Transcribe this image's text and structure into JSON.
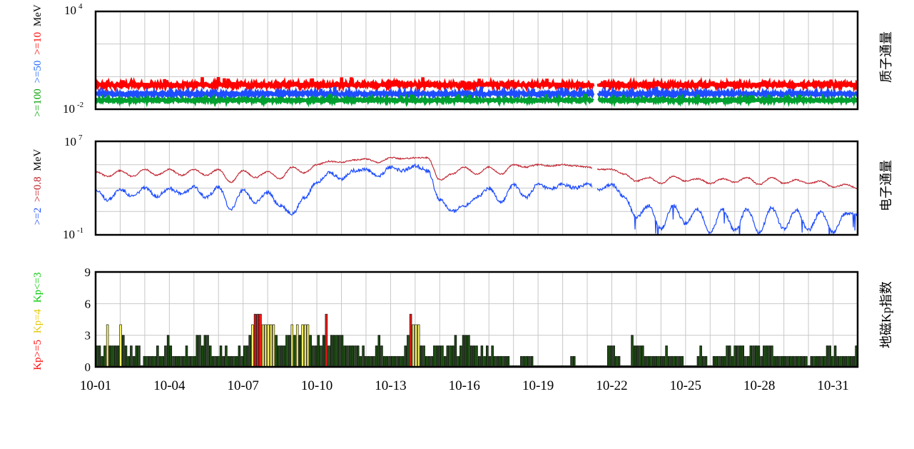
{
  "chart_data": [
    {
      "type": "line",
      "panel": "proton-flux",
      "yscale": "log",
      "ylim_exp": [
        -2,
        4
      ],
      "y_tick_labels": [
        {
          "base": "10",
          "exp": "4",
          "value_exp": 4
        },
        {
          "base": "10",
          "exp": "-2",
          "value_exp": -2
        }
      ],
      "right_label": "质子通量",
      "left_label_parts": [
        {
          "text": ">=100",
          "color": "#00a000"
        },
        {
          "text": ">=50",
          "color": "#1e64ff"
        },
        {
          "text": ">=10",
          "color": "#ff0000"
        },
        {
          "text": "MeV",
          "color": "#000000"
        }
      ],
      "series": [
        {
          "color": "#ff0000",
          "base_exp": -0.5,
          "noise": 0.12
        },
        {
          "color": "#1e4dff",
          "base_exp": -1.05,
          "noise": 0.08
        },
        {
          "color": "#00a030",
          "base_exp": -1.45,
          "noise": 0.06
        }
      ],
      "data_gap_days": [
        20.25,
        20.45
      ]
    },
    {
      "type": "line",
      "panel": "electron-flux",
      "yscale": "log",
      "ylim_exp": [
        -1,
        7
      ],
      "y_tick_labels": [
        {
          "base": "10",
          "exp": "7",
          "value_exp": 7
        },
        {
          "base": "10",
          "exp": "-1",
          "value_exp": -1
        }
      ],
      "right_label": "电子通量",
      "left_label_parts": [
        {
          "text": ">=2",
          "color": "#1e4dff"
        },
        {
          "text": ">=0.8",
          "color": "#c0141e"
        },
        {
          "text": "MeV",
          "color": "#000000"
        }
      ],
      "series": [
        {
          "color": "#c0202c",
          "day": [
            0,
            0.5,
            1,
            1.5,
            2,
            2.5,
            3,
            3.5,
            4,
            4.5,
            5,
            5.5,
            6,
            6.5,
            7,
            7.5,
            8,
            8.5,
            9,
            9.5,
            10,
            10.5,
            11,
            11.5,
            12,
            12.5,
            13,
            13.5,
            14,
            14.5,
            15,
            15.5,
            16,
            16.5,
            17,
            17.5,
            18,
            18.5,
            19,
            19.5,
            20,
            20.5,
            21,
            21.5,
            22,
            22.5,
            23,
            23.5,
            24,
            24.5,
            25,
            25.5,
            26,
            26.5,
            27,
            27.5,
            28,
            28.5,
            29,
            29.5,
            30,
            30.5,
            31
          ],
          "log10": [
            4.4,
            4.0,
            4.5,
            4.0,
            4.6,
            4.1,
            4.6,
            4.1,
            4.6,
            4.1,
            4.6,
            3.5,
            4.5,
            3.9,
            4.4,
            3.8,
            4.8,
            4.3,
            5.0,
            5.3,
            5.2,
            5.4,
            5.5,
            5.2,
            5.6,
            5.5,
            5.6,
            5.6,
            3.7,
            4.2,
            4.8,
            4.2,
            4.8,
            4.2,
            5.0,
            4.8,
            5.0,
            4.9,
            5.0,
            4.9,
            4.8,
            4.6,
            4.6,
            4.2,
            3.6,
            3.9,
            3.4,
            4.0,
            3.6,
            3.8,
            3.4,
            3.8,
            3.5,
            3.9,
            3.3,
            3.9,
            3.4,
            3.7,
            3.4,
            3.6,
            3.1,
            3.3,
            3.0
          ]
        },
        {
          "color": "#1e4dff",
          "day": [
            0,
            0.5,
            1,
            1.5,
            2,
            2.5,
            3,
            3.5,
            4,
            4.5,
            5,
            5.5,
            6,
            6.5,
            7,
            7.5,
            8,
            8.5,
            9,
            9.5,
            10,
            10.5,
            11,
            11.5,
            12,
            12.5,
            13,
            13.5,
            14,
            14.5,
            15,
            15.5,
            16,
            16.5,
            17,
            17.5,
            18,
            18.5,
            19,
            19.5,
            20,
            20.5,
            21,
            21.5,
            22,
            22.5,
            23,
            23.5,
            24,
            24.5,
            25,
            25.5,
            26,
            26.5,
            27,
            27.5,
            28,
            28.5,
            29,
            29.5,
            30,
            30.5,
            31
          ],
          "log10": [
            2.8,
            2.0,
            2.9,
            2.3,
            3.0,
            2.3,
            3.0,
            2.5,
            3.1,
            2.2,
            3.1,
            1.2,
            2.8,
            1.8,
            2.6,
            1.5,
            0.8,
            2.2,
            3.5,
            4.3,
            3.8,
            4.5,
            4.6,
            4.0,
            4.8,
            4.5,
            4.9,
            4.5,
            2.0,
            1.0,
            1.5,
            2.2,
            3.0,
            1.8,
            3.3,
            2.2,
            3.3,
            2.9,
            3.3,
            3.0,
            3.3,
            2.9,
            3.3,
            2.3,
            0.5,
            1.5,
            -0.5,
            1.5,
            0.0,
            1.2,
            -0.8,
            1.2,
            -0.6,
            1.2,
            -0.8,
            1.3,
            -0.5,
            1.1,
            -0.6,
            1.0,
            -0.8,
            0.8,
            0.7
          ]
        }
      ]
    },
    {
      "type": "bar",
      "panel": "kp-index",
      "ylim": [
        0,
        9
      ],
      "y_tick_labels": [
        "9",
        "6",
        "3",
        "0"
      ],
      "right_label": "地磁Kp指数",
      "left_label_parts": [
        {
          "text": "Kp>=5",
          "color": "#ff0000"
        },
        {
          "text": "Kp=4",
          "color": "#e6c800"
        },
        {
          "text": "Kp<=3",
          "color": "#00c800"
        }
      ],
      "x_tick_labels": [
        "10-01",
        "10-04",
        "10-07",
        "10-10",
        "10-13",
        "10-16",
        "10-19",
        "10-22",
        "10-25",
        "10-28",
        "10-31"
      ],
      "x_tick_days": [
        0,
        3,
        6,
        9,
        12,
        15,
        18,
        21,
        24,
        27,
        30
      ],
      "bar_colors": {
        "low": "#1e4a14",
        "mid": "#f5f066",
        "high": "#ee1c1c"
      },
      "interval_hours": 3,
      "values": [
        2,
        2,
        1,
        2,
        4,
        2,
        2,
        2,
        2,
        4,
        3,
        2,
        1,
        2,
        1,
        2,
        2,
        0,
        1,
        1,
        1,
        1,
        1,
        2,
        1,
        1,
        2,
        3,
        2,
        1,
        1,
        1,
        1,
        1,
        2,
        1,
        1,
        1,
        3,
        3,
        2,
        3,
        3,
        2,
        1,
        1,
        1,
        2,
        1,
        2,
        1,
        1,
        1,
        1,
        2,
        1,
        2,
        2,
        3,
        4,
        5,
        5,
        5,
        4,
        4,
        4,
        4,
        4,
        3,
        2,
        2,
        2,
        3,
        3,
        4,
        3,
        4,
        3,
        4,
        4,
        4,
        3,
        2,
        2,
        3,
        2,
        3,
        5,
        2,
        3,
        3,
        3,
        3,
        3,
        2,
        2,
        2,
        2,
        2,
        2,
        1,
        2,
        1,
        1,
        1,
        1,
        2,
        3,
        2,
        1,
        1,
        1,
        1,
        1,
        1,
        1,
        1,
        2,
        3,
        5,
        4,
        4,
        4,
        2,
        2,
        1,
        1,
        1,
        2,
        2,
        2,
        2,
        1,
        2,
        2,
        2,
        3,
        1,
        2,
        3,
        3,
        3,
        2,
        2,
        2,
        1,
        2,
        1,
        2,
        1,
        2,
        1,
        1,
        1,
        1,
        1,
        1,
        0,
        0,
        0,
        0,
        1,
        1,
        1,
        1,
        1,
        0,
        0,
        0,
        0,
        0,
        0,
        0,
        0,
        0,
        0,
        0,
        0,
        0,
        0,
        1,
        1,
        0,
        0,
        0,
        0,
        0,
        0,
        0,
        0,
        0,
        0,
        0,
        0,
        2,
        2,
        2,
        1,
        1,
        0,
        0,
        0,
        0,
        3,
        2,
        2,
        2,
        2,
        1,
        1,
        1,
        1,
        1,
        1,
        1,
        1,
        2,
        1,
        1,
        1,
        1,
        1,
        1,
        0,
        0,
        0,
        0,
        0,
        1,
        2,
        1,
        1,
        0,
        0,
        1,
        1,
        1,
        1,
        1,
        2,
        2,
        1,
        2,
        2,
        2,
        2,
        1,
        1,
        2,
        2,
        2,
        2,
        1,
        2,
        2,
        2,
        2,
        1,
        1,
        1,
        1,
        1,
        1,
        1,
        1,
        1,
        1,
        1,
        1,
        1,
        0,
        1,
        1,
        1,
        1,
        1,
        1,
        2,
        2,
        1,
        2,
        1,
        1,
        1,
        1,
        1,
        1,
        1,
        2
      ]
    }
  ]
}
